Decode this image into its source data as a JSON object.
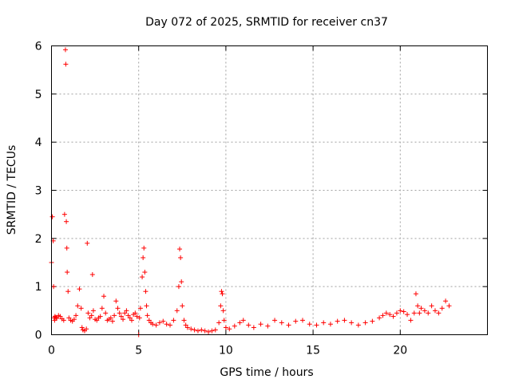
{
  "chart_data": {
    "type": "scatter",
    "title": "Day 072 of 2025, SRMTID for receiver cn37",
    "xlabel": "GPS time / hours",
    "ylabel": "SRMTID / TECUs",
    "xlim": [
      0,
      25
    ],
    "ylim": [
      0,
      6
    ],
    "xticks": [
      0,
      5,
      10,
      15,
      20
    ],
    "yticks": [
      0,
      1,
      2,
      3,
      4,
      5,
      6
    ],
    "grid": true,
    "marker": "plus",
    "color": "#ff0000",
    "series": [
      {
        "name": "SRMTID",
        "x": [
          0.0,
          0.05,
          0.1,
          0.12,
          0.15,
          0.18,
          0.2,
          0.25,
          0.3,
          0.4,
          0.5,
          0.6,
          0.7,
          0.75,
          0.8,
          0.82,
          0.85,
          0.88,
          0.9,
          0.95,
          1.0,
          1.1,
          1.2,
          1.3,
          1.4,
          1.5,
          1.6,
          1.7,
          1.75,
          1.8,
          1.9,
          2.0,
          2.05,
          2.1,
          2.2,
          2.3,
          2.35,
          2.4,
          2.5,
          2.6,
          2.7,
          2.8,
          2.9,
          3.0,
          3.1,
          3.2,
          3.3,
          3.4,
          3.5,
          3.6,
          3.7,
          3.8,
          3.9,
          4.0,
          4.1,
          4.2,
          4.3,
          4.4,
          4.5,
          4.6,
          4.7,
          4.8,
          4.9,
          5.0,
          5.05,
          5.1,
          5.2,
          5.25,
          5.3,
          5.35,
          5.4,
          5.45,
          5.5,
          5.6,
          5.7,
          5.8,
          6.0,
          6.2,
          6.4,
          6.6,
          6.8,
          7.0,
          7.2,
          7.3,
          7.35,
          7.4,
          7.45,
          7.5,
          7.6,
          7.7,
          7.8,
          8.0,
          8.2,
          8.4,
          8.6,
          8.8,
          9.0,
          9.2,
          9.4,
          9.6,
          9.7,
          9.75,
          9.8,
          9.85,
          9.9,
          10.0,
          10.2,
          10.5,
          10.8,
          11.0,
          11.3,
          11.6,
          12.0,
          12.4,
          12.8,
          13.2,
          13.6,
          14.0,
          14.4,
          14.8,
          15.2,
          15.6,
          16.0,
          16.4,
          16.8,
          17.2,
          17.6,
          18.0,
          18.4,
          18.8,
          19.0,
          19.2,
          19.4,
          19.6,
          19.8,
          20.0,
          20.2,
          20.4,
          20.6,
          20.8,
          20.9,
          21.0,
          21.1,
          21.2,
          21.4,
          21.6,
          21.8,
          22.0,
          22.2,
          22.4,
          22.6,
          22.8
        ],
        "y": [
          1.5,
          2.45,
          1.95,
          1.0,
          0.35,
          0.3,
          0.38,
          0.36,
          0.34,
          0.4,
          0.38,
          0.33,
          0.3,
          2.5,
          5.92,
          5.62,
          2.35,
          1.8,
          1.3,
          0.9,
          0.35,
          0.3,
          0.28,
          0.32,
          0.4,
          0.6,
          0.95,
          0.55,
          0.15,
          0.1,
          0.08,
          0.12,
          1.9,
          0.45,
          0.35,
          0.4,
          1.25,
          0.5,
          0.32,
          0.3,
          0.35,
          0.38,
          0.55,
          0.8,
          0.45,
          0.3,
          0.32,
          0.35,
          0.28,
          0.4,
          0.7,
          0.55,
          0.45,
          0.38,
          0.32,
          0.45,
          0.5,
          0.4,
          0.35,
          0.3,
          0.42,
          0.45,
          0.38,
          0.0,
          0.35,
          0.55,
          1.2,
          1.6,
          1.8,
          1.3,
          0.9,
          0.6,
          0.4,
          0.3,
          0.25,
          0.22,
          0.2,
          0.25,
          0.28,
          0.22,
          0.2,
          0.3,
          0.5,
          1.0,
          1.78,
          1.6,
          1.1,
          0.6,
          0.3,
          0.2,
          0.15,
          0.12,
          0.1,
          0.08,
          0.1,
          0.08,
          0.06,
          0.08,
          0.1,
          0.25,
          0.6,
          0.9,
          0.85,
          0.5,
          0.3,
          0.15,
          0.12,
          0.18,
          0.25,
          0.3,
          0.2,
          0.15,
          0.22,
          0.18,
          0.3,
          0.25,
          0.2,
          0.28,
          0.3,
          0.22,
          0.2,
          0.25,
          0.22,
          0.28,
          0.3,
          0.25,
          0.2,
          0.25,
          0.28,
          0.35,
          0.4,
          0.45,
          0.42,
          0.38,
          0.45,
          0.5,
          0.48,
          0.42,
          0.3,
          0.45,
          0.85,
          0.6,
          0.45,
          0.55,
          0.5,
          0.45,
          0.6,
          0.5,
          0.45,
          0.55,
          0.7,
          0.6
        ]
      }
    ]
  }
}
